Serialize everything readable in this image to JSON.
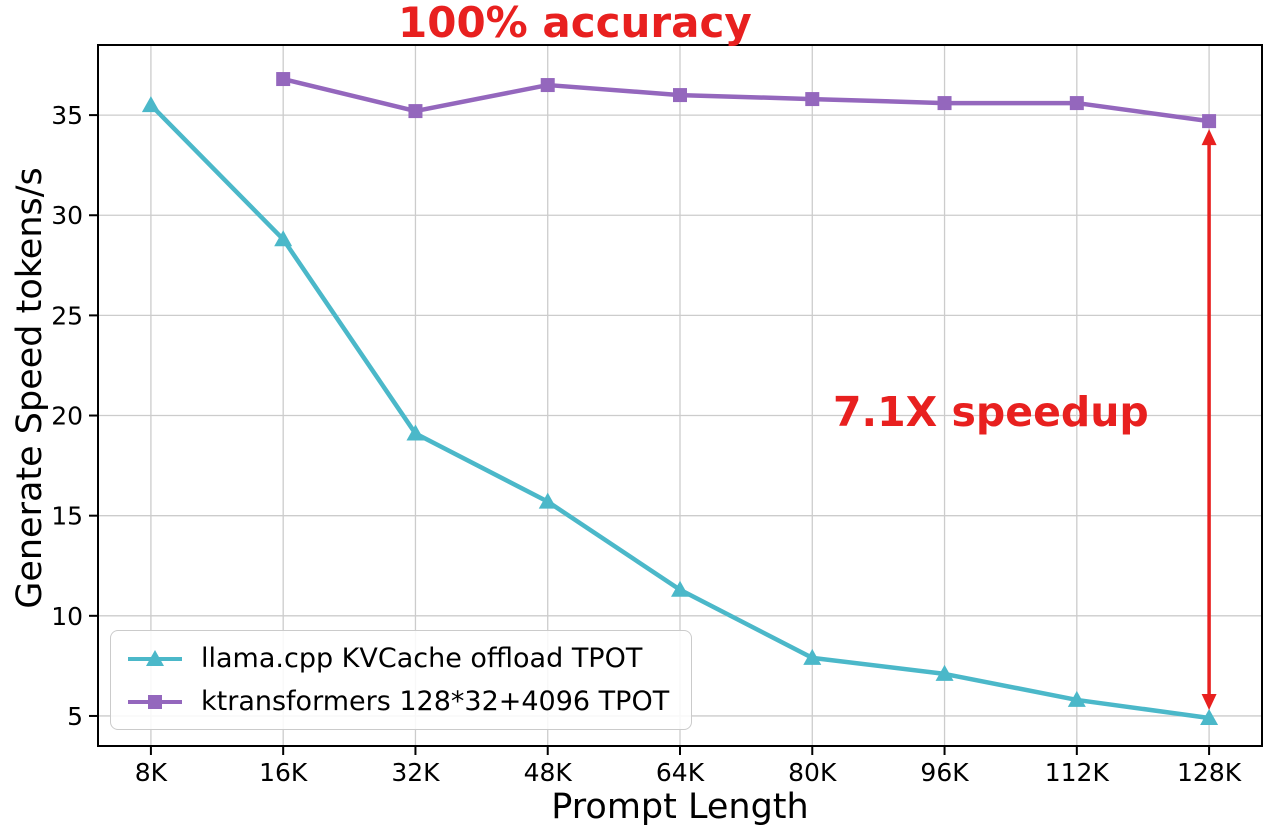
{
  "chart_data": {
    "type": "line",
    "title": "100% accuracy",
    "title_color": "#e8201f",
    "xlabel": "Prompt Length",
    "ylabel": "Generate Speed tokens/s",
    "categories": [
      "8K",
      "16K",
      "32K",
      "48K",
      "64K",
      "80K",
      "96K",
      "112K",
      "128K"
    ],
    "yticks": [
      5,
      10,
      15,
      20,
      25,
      30,
      35
    ],
    "ylim": [
      3.5,
      38.5
    ],
    "grid": true,
    "grid_color": "#cccccc",
    "legend_position": "lower left",
    "series": [
      {
        "name": "llama.cpp KVCache offload TPOT",
        "color": "#4bb8c9",
        "marker": "triangle",
        "values": [
          35.5,
          28.8,
          19.1,
          15.7,
          11.3,
          7.9,
          7.1,
          5.8,
          4.9
        ]
      },
      {
        "name": "ktransformers 128*32+4096 TPOT",
        "color": "#9467bd",
        "marker": "square",
        "values": [
          null,
          36.8,
          35.2,
          36.5,
          36.0,
          35.8,
          35.6,
          35.6,
          34.7
        ]
      }
    ],
    "annotations": [
      {
        "text": "7.1X speedup",
        "color": "#e8201f"
      }
    ],
    "arrow": {
      "category": "128K",
      "from_value": 34.7,
      "to_value": 4.9,
      "color": "#e8201f"
    }
  }
}
